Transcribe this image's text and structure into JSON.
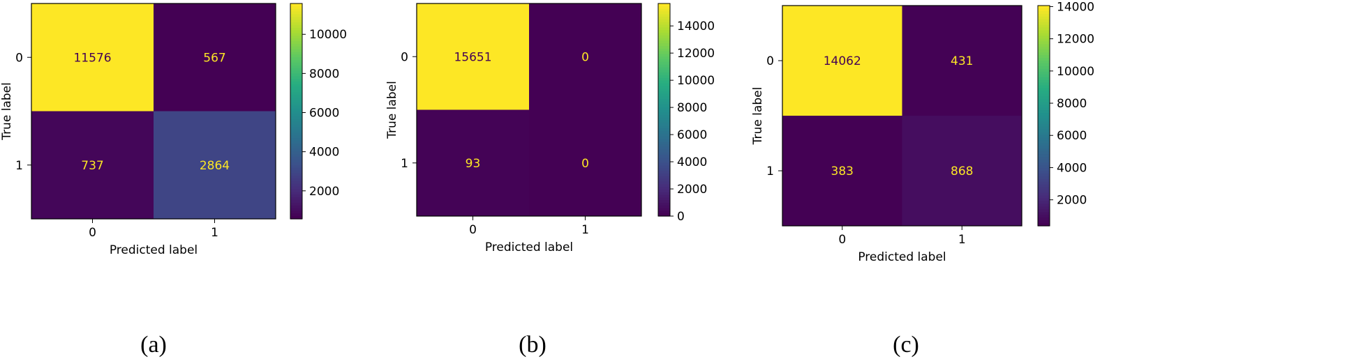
{
  "colors": {
    "viridis_low": "#440154",
    "viridis_high": "#fde725",
    "high_value_text": "#440154",
    "low_value_text": "#fde725",
    "axes": "#000000"
  },
  "chart_data": [
    {
      "type": "heatmap",
      "caption": "(a)",
      "xlabel": "Predicted label",
      "ylabel": "True label",
      "x_categories": [
        "0",
        "1"
      ],
      "y_categories": [
        "0",
        "1"
      ],
      "values": [
        [
          11576,
          567
        ],
        [
          737,
          2864
        ]
      ],
      "value_labels": [
        [
          "11576",
          "567"
        ],
        [
          "737",
          "2864"
        ]
      ],
      "color_range": [
        567,
        11576
      ],
      "colorbar_ticks": [
        2000,
        4000,
        6000,
        8000,
        10000
      ],
      "colorbar_tick_labels": [
        "2000",
        "4000",
        "6000",
        "8000",
        "10000"
      ]
    },
    {
      "type": "heatmap",
      "caption": "(b)",
      "xlabel": "Predicted label",
      "ylabel": "True label",
      "x_categories": [
        "0",
        "1"
      ],
      "y_categories": [
        "0",
        "1"
      ],
      "values": [
        [
          15651,
          0
        ],
        [
          93,
          0
        ]
      ],
      "value_labels": [
        [
          "15651",
          "0"
        ],
        [
          "93",
          "0"
        ]
      ],
      "color_range": [
        0,
        15651
      ],
      "colorbar_ticks": [
        0,
        2000,
        4000,
        6000,
        8000,
        10000,
        12000,
        14000
      ],
      "colorbar_tick_labels": [
        "0",
        "2000",
        "4000",
        "6000",
        "8000",
        "10000",
        "12000",
        "14000"
      ]
    },
    {
      "type": "heatmap",
      "caption": "(c)",
      "xlabel": "Predicted label",
      "ylabel": "True label",
      "x_categories": [
        "0",
        "1"
      ],
      "y_categories": [
        "0",
        "1"
      ],
      "values": [
        [
          14062,
          431
        ],
        [
          383,
          868
        ]
      ],
      "value_labels": [
        [
          "14062",
          "431"
        ],
        [
          "383",
          "868"
        ]
      ],
      "color_range": [
        383,
        14062
      ],
      "colorbar_ticks": [
        2000,
        4000,
        6000,
        8000,
        10000,
        12000,
        14000
      ],
      "colorbar_tick_labels": [
        "2000",
        "4000",
        "6000",
        "8000",
        "10000",
        "12000",
        "14000"
      ]
    }
  ]
}
